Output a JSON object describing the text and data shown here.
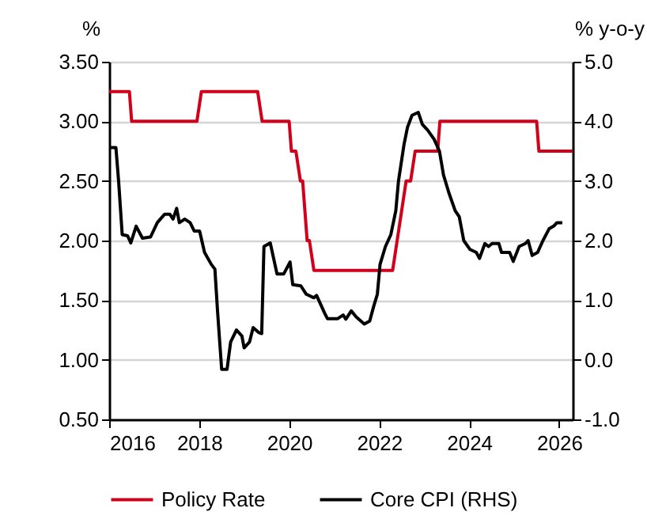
{
  "chart_data": {
    "type": "line",
    "ylabel": "%",
    "y2label": "% y-o-y",
    "xlim": [
      2016,
      2026.3
    ],
    "xticks": [
      2016,
      2018,
      2020,
      2022,
      2024,
      2026
    ],
    "ylim": [
      0.5,
      3.5
    ],
    "yticks": [
      {
        "value": 0.5,
        "label": "0.50"
      },
      {
        "value": 1,
        "label": "1.00"
      },
      {
        "value": 1.5,
        "label": "1.50"
      },
      {
        "value": 2,
        "label": "2.00"
      },
      {
        "value": 2.5,
        "label": "2.50"
      },
      {
        "value": 3,
        "label": "3.00"
      },
      {
        "value": 3.5,
        "label": "3.50"
      }
    ],
    "y2lim": [
      -1,
      5
    ],
    "y2ticks": [
      {
        "value": -1,
        "label": "-1.0"
      },
      {
        "value": 0,
        "label": "0.0"
      },
      {
        "value": 1,
        "label": "1.0"
      },
      {
        "value": 2,
        "label": "2.0"
      },
      {
        "value": 3,
        "label": "3.0"
      },
      {
        "value": 4,
        "label": "4.0"
      },
      {
        "value": 5,
        "label": "5.0"
      }
    ],
    "grid": "y",
    "legend": "bottom",
    "series": [
      {
        "name": "Policy Rate",
        "color": "#d0021b",
        "x": [
          2016,
          2016.45,
          2016.5,
          2017.95,
          2018.05,
          2019.3,
          2019.4,
          2020.0,
          2020.05,
          2020.15,
          2020.25,
          2020.3,
          2020.4,
          2020.45,
          2020.55,
          2022.3,
          2022.4,
          2022.5,
          2022.6,
          2022.7,
          2022.8,
          2023.3,
          2023.35,
          2025.5,
          2025.55,
          2026.3
        ],
        "values": [
          3.25,
          3.25,
          3.0,
          3.0,
          3.25,
          3.25,
          3.0,
          3.0,
          2.75,
          2.75,
          2.5,
          2.5,
          2.0,
          2.0,
          1.75,
          1.75,
          2.0,
          2.25,
          2.5,
          2.5,
          2.75,
          2.75,
          3.0,
          3.0,
          2.75,
          2.75
        ]
      },
      {
        "name": "Core CPI (RHS)",
        "color": "#000000",
        "axis": "y2",
        "x": [
          2016.0,
          2016.15,
          2016.21,
          2016.29,
          2016.41,
          2016.48,
          2016.6,
          2016.74,
          2016.92,
          2017.07,
          2017.23,
          2017.35,
          2017.42,
          2017.5,
          2017.56,
          2017.68,
          2017.8,
          2017.89,
          2018.01,
          2018.12,
          2018.27,
          2018.35,
          2018.41,
          2018.5,
          2018.62,
          2018.7,
          2018.83,
          2018.95,
          2019.0,
          2019.12,
          2019.2,
          2019.32,
          2019.39,
          2019.44,
          2019.58,
          2019.73,
          2019.88,
          2020.02,
          2020.08,
          2020.26,
          2020.38,
          2020.55,
          2020.61,
          2020.79,
          2020.85,
          2021.08,
          2021.2,
          2021.26,
          2021.38,
          2021.49,
          2021.67,
          2021.79,
          2021.88,
          2021.96,
          2022.02,
          2022.14,
          2022.26,
          2022.37,
          2022.43,
          2022.55,
          2022.63,
          2022.73,
          2022.87,
          2022.96,
          2023.08,
          2023.22,
          2023.34,
          2023.43,
          2023.55,
          2023.69,
          2023.78,
          2023.88,
          2024.02,
          2024.16,
          2024.23,
          2024.35,
          2024.43,
          2024.51,
          2024.66,
          2024.72,
          2024.9,
          2024.98,
          2025.11,
          2025.25,
          2025.31,
          2025.4,
          2025.52,
          2025.64,
          2025.78,
          2025.89,
          2025.95,
          2026.07
        ],
        "values": [
          3.56,
          3.56,
          3.0,
          2.1,
          2.08,
          1.96,
          2.24,
          2.04,
          2.06,
          2.3,
          2.44,
          2.44,
          2.36,
          2.54,
          2.3,
          2.36,
          2.3,
          2.16,
          2.16,
          1.8,
          1.6,
          1.52,
          0.8,
          -0.16,
          -0.16,
          0.3,
          0.5,
          0.4,
          0.2,
          0.3,
          0.54,
          0.46,
          0.44,
          1.9,
          1.96,
          1.44,
          1.44,
          1.64,
          1.26,
          1.24,
          1.1,
          1.04,
          1.08,
          0.78,
          0.69,
          0.69,
          0.75,
          0.68,
          0.82,
          0.72,
          0.6,
          0.65,
          0.9,
          1.1,
          1.6,
          1.9,
          2.1,
          2.5,
          3.0,
          3.6,
          3.9,
          4.1,
          4.15,
          3.95,
          3.85,
          3.7,
          3.5,
          3.1,
          2.8,
          2.5,
          2.4,
          2.0,
          1.85,
          1.8,
          1.7,
          1.95,
          1.9,
          1.95,
          1.95,
          1.8,
          1.8,
          1.65,
          1.9,
          1.95,
          2.0,
          1.75,
          1.8,
          2.0,
          2.2,
          2.25,
          2.3,
          2.3
        ]
      }
    ]
  }
}
